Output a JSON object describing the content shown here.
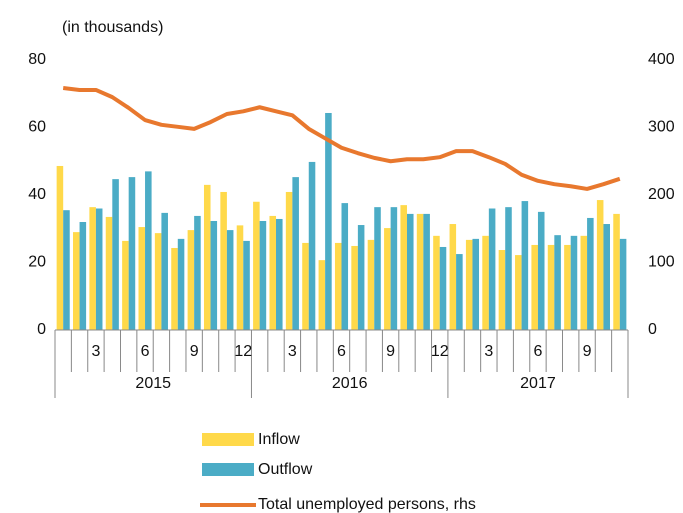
{
  "chart_data": {
    "type": "bar-line",
    "subtitle": "(in thousands)",
    "categories": [
      null,
      null,
      "3",
      null,
      null,
      "6",
      null,
      null,
      "9",
      null,
      null,
      "12",
      null,
      null,
      "3",
      null,
      null,
      "6",
      null,
      null,
      "9",
      null,
      null,
      "12",
      null,
      null,
      "3",
      null,
      null,
      "6",
      null,
      null,
      "9",
      null,
      null
    ],
    "groups": [
      {
        "label": "2015",
        "count": 12
      },
      {
        "label": "2016",
        "count": 12
      },
      {
        "label": "2017",
        "count": 11
      }
    ],
    "series": [
      {
        "name": "Inflow",
        "type": "bar",
        "color": "#FFD94A",
        "values": [
          48.6,
          29,
          36.4,
          33.5,
          26.4,
          30.5,
          28.7,
          24.3,
          29.6,
          43,
          40.9,
          31,
          38,
          33.8,
          40.9,
          25.8,
          20.7,
          25.8,
          24.9,
          26.7,
          30.2,
          37,
          34.4,
          27.9,
          31.4,
          26.7,
          27.9,
          23.7,
          22.2,
          25.2,
          25.2,
          25.2,
          27.9,
          38.5,
          34.4
        ]
      },
      {
        "name": "Outflow",
        "type": "bar",
        "color": "#4BACC6",
        "values": [
          35.5,
          32,
          36,
          44.7,
          45.3,
          47,
          34.7,
          27,
          33.8,
          32.3,
          29.6,
          26.4,
          32.3,
          32.9,
          45.3,
          49.8,
          64.3,
          37.6,
          31.1,
          36.4,
          36.4,
          34.4,
          34.4,
          24.6,
          22.5,
          27,
          36,
          36.4,
          38.2,
          35,
          28.1,
          27.9,
          33.2,
          31.4,
          27
        ]
      },
      {
        "name": "Total unemployed persons, rhs",
        "type": "line",
        "axis": "y2",
        "color": "#E8782E",
        "values": [
          358.5,
          355.6,
          355.6,
          345,
          329,
          311,
          304,
          301,
          298,
          308,
          320,
          324,
          330,
          324,
          318,
          298,
          284,
          270,
          262,
          255,
          250,
          253,
          253,
          256,
          265,
          265,
          256,
          246,
          230,
          221,
          216,
          213,
          209,
          216,
          224
        ]
      }
    ],
    "ylim": [
      0,
      80
    ],
    "yticks": [
      0,
      20,
      40,
      60,
      80
    ],
    "y2lim": [
      0,
      400
    ],
    "y2ticks": [
      0,
      100,
      200,
      300,
      400
    ]
  }
}
